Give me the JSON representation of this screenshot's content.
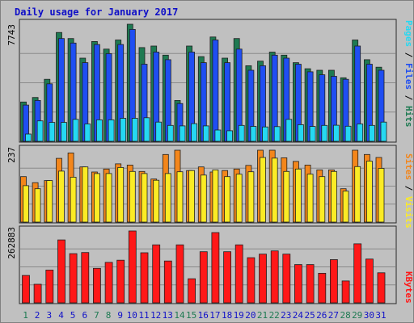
{
  "chart_data": {
    "type": "bar",
    "title": "Daily usage for January 2017",
    "categories": [
      "1",
      "2",
      "3",
      "4",
      "5",
      "6",
      "7",
      "8",
      "9",
      "10",
      "11",
      "12",
      "13",
      "14",
      "15",
      "16",
      "17",
      "18",
      "19",
      "20",
      "21",
      "22",
      "23",
      "24",
      "25",
      "26",
      "27",
      "28",
      "29",
      "30",
      "31"
    ],
    "weekend_days": [
      "1",
      "7",
      "8",
      "14",
      "15",
      "21",
      "22",
      "28",
      "29"
    ],
    "panels": [
      {
        "id": "hits",
        "ymax": 7743,
        "ymax_label": "7743",
        "axis_labels": [
          "Pages",
          "Files",
          "Hits"
        ],
        "series": [
          {
            "name": "Hits",
            "color": "#1e7a52",
            "values": [
              2600,
              2900,
              4100,
              7200,
              6800,
              5500,
              6600,
              6100,
              6700,
              7743,
              6200,
              6300,
              5700,
              2700,
              6300,
              5600,
              6900,
              5500,
              6800,
              5000,
              5300,
              5900,
              5700,
              5200,
              4800,
              4700,
              4700,
              4200,
              6700,
              5400,
              4900
            ]
          },
          {
            "name": "Files",
            "color": "#1f4ef2",
            "values": [
              2400,
              2700,
              3800,
              6800,
              6500,
              5200,
              6400,
              5800,
              6400,
              7400,
              5100,
              5900,
              5400,
              2500,
              5900,
              5200,
              6700,
              5200,
              6100,
              4700,
              5000,
              5700,
              5500,
              5100,
              4600,
              4400,
              4300,
              4100,
              6300,
              5100,
              4700
            ]
          },
          {
            "name": "Pages",
            "color": "#25d8f2",
            "values": [
              480,
              1350,
              1250,
              1250,
              1450,
              1150,
              1420,
              1420,
              1520,
              1520,
              1560,
              1270,
              1050,
              1020,
              1170,
              1020,
              750,
              700,
              1050,
              990,
              950,
              970,
              1450,
              1100,
              980,
              1050,
              1060,
              1000,
              1150,
              1050,
              1270
            ]
          }
        ]
      },
      {
        "id": "visits",
        "ymax": 237,
        "ymax_label": "237",
        "axis_labels": [
          "Sites",
          "Visits"
        ],
        "series": [
          {
            "name": "Visits",
            "color": "#f3861b",
            "values": [
              150,
              130,
              137,
              210,
              228,
              182,
              165,
              175,
              192,
              188,
              167,
              142,
              223,
              237,
              170,
              182,
              165,
              170,
              175,
              187,
              237,
              237,
              212,
              200,
              188,
              172,
              172,
              110,
              237,
              223,
              213
            ]
          },
          {
            "name": "Sites",
            "color": "#fbeb25",
            "values": [
              120,
              110,
              137,
              168,
              148,
              182,
              160,
              160,
              180,
              167,
              160,
              138,
              160,
              166,
              170,
              155,
              172,
              150,
              158,
              166,
              213,
              211,
              167,
              175,
              158,
              150,
              167,
              102,
              183,
              201,
              177
            ]
          }
        ]
      },
      {
        "id": "kbytes",
        "ymax": 262883,
        "ymax_label": "262883",
        "axis_labels": [
          "KBytes"
        ],
        "series": [
          {
            "name": "KBytes",
            "color": "#ff1818",
            "values": [
              100000,
              68000,
              120000,
              230000,
              180000,
              184000,
              126000,
              148000,
              156000,
              262883,
              183000,
              212000,
              153000,
              212000,
              88000,
              187000,
              257000,
              187000,
              212000,
              165000,
              178000,
              190000,
              178000,
              140000,
              140000,
              108000,
              158000,
              80000,
              216000,
              160000,
              110000
            ]
          }
        ]
      }
    ]
  }
}
